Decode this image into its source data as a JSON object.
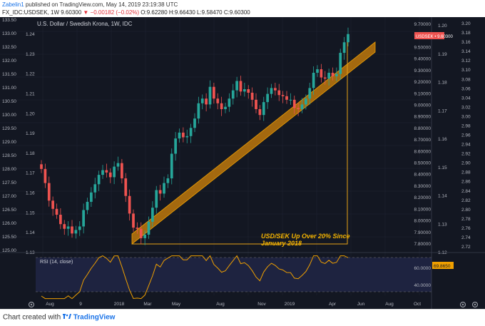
{
  "header": {
    "author": "Zabelin1",
    "published_text": "published on TradingView.com, May 14, 2019 23:19:38 UTC",
    "symbol": "FX_IDC:USDSEK, 1W",
    "last": "9.60300",
    "change": "▼ −0.00182 (−0.02%)",
    "ohlc": "O:9.62280 H:9.66430 L:9.58470 C:9.60300"
  },
  "chart_title": "U.S. Dollar / Swedish Krona, 1W, IDC",
  "price_badge": "USDSEK • 9.60300",
  "annotation": {
    "line1": "USD/SEK Up Over 20% Since",
    "line2": "January 2018"
  },
  "rsi": {
    "label": "RSI (14, close)",
    "badge": "69.8650",
    "ticks": [
      "60.0000",
      "40.0000"
    ]
  },
  "left_axis": [
    "133.50",
    "133.00",
    "132.50",
    "132.00",
    "131.50",
    "131.00",
    "130.50",
    "130.00",
    "129.50",
    "129.00",
    "128.50",
    "128.00",
    "127.50",
    "127.00",
    "126.50",
    "126.00",
    "125.50",
    "125.00"
  ],
  "inner_axis": [
    "1.24",
    "1.23",
    "1.22",
    "1.21",
    "1.20",
    "1.19",
    "1.18",
    "1.17",
    "1.16",
    "1.15",
    "1.14",
    "1.13"
  ],
  "price_axis": [
    "9.70000",
    "9.60000",
    "9.50000",
    "9.40000",
    "9.30000",
    "9.20000",
    "9.10000",
    "9.00000",
    "8.90000",
    "8.80000",
    "8.70000",
    "8.60000",
    "8.50000",
    "8.40000",
    "8.30000",
    "8.20000",
    "8.10000",
    "8.00000",
    "7.90000",
    "7.80000"
  ],
  "axis2": [
    "1.20",
    "1.19",
    "1.18",
    "1.17",
    "1.16",
    "1.15",
    "1.14",
    "1.13",
    "1.12"
  ],
  "axis3": [
    "3.20",
    "3.18",
    "3.16",
    "3.14",
    "3.12",
    "3.10",
    "3.08",
    "3.06",
    "3.04",
    "3.02",
    "3.00",
    "2.98",
    "2.96",
    "2.94",
    "2.92",
    "2.90",
    "2.88",
    "2.86",
    "2.84",
    "2.82",
    "2.80",
    "2.78",
    "2.76",
    "2.74",
    "2.72"
  ],
  "time_axis": [
    "Aug",
    "9",
    "2018",
    "Mar",
    "May",
    "Aug",
    "Nov",
    "2019",
    "Apr",
    "Jun",
    "Aug",
    "Oct"
  ],
  "footer": {
    "prefix": "Chart created with",
    "brand": "TradingView"
  },
  "colors": {
    "up": "#26a69a",
    "down": "#ef5350",
    "channel": "#e08a00",
    "rsi": "#f0a000",
    "background": "#131722",
    "annotation": "#f5b400"
  },
  "chart_data": {
    "type": "candlestick",
    "title": "U.S. Dollar / Swedish Krona, 1W, IDC",
    "series": [
      {
        "name": "USDSEK",
        "values": [
          8.45,
          8.33,
          8.18,
          8.11,
          8.06,
          7.98,
          7.94,
          7.96,
          7.9,
          7.93,
          7.96,
          8.1,
          8.17,
          8.25,
          8.32,
          8.4,
          8.44,
          8.42,
          8.38,
          8.47,
          8.5,
          8.37,
          8.22,
          8.07,
          7.95,
          7.94,
          7.86,
          7.89,
          8.0,
          8.12,
          8.27,
          8.24,
          8.33,
          8.37,
          8.58,
          8.71,
          8.76,
          8.72,
          8.73,
          8.8,
          8.88,
          9.01,
          9.05,
          9.0,
          9.15,
          9.05,
          9.01,
          8.96,
          8.98,
          9.05,
          9.12,
          9.2,
          9.11,
          9.13,
          9.1,
          9.04,
          8.96,
          8.91,
          9.02,
          9.09,
          9.14,
          9.12,
          9.08,
          9.07,
          9.04,
          9.04,
          8.97,
          8.96,
          9.0,
          9.05,
          9.14,
          9.27,
          9.3,
          9.23,
          9.22,
          9.27,
          9.24,
          9.26,
          9.44,
          9.53,
          9.6
        ]
      }
    ],
    "ylim": [
      7.75,
      9.72
    ],
    "rsi": {
      "name": "RSI (14, close)",
      "last": 69.865,
      "ylim": [
        20,
        80
      ]
    }
  }
}
